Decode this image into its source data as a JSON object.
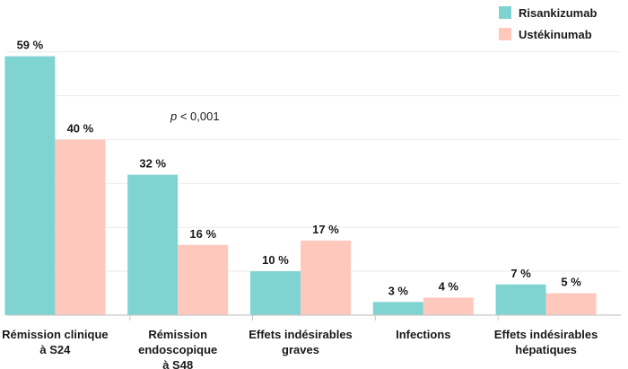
{
  "chart_data": {
    "type": "bar",
    "categories": [
      [
        "Rémission clinique",
        "à S24"
      ],
      [
        "Rémission",
        "endoscopique",
        "à S48"
      ],
      [
        "Effets indésirables",
        "graves"
      ],
      [
        "Infections"
      ],
      [
        "Effets indésirables",
        "hépatiques"
      ]
    ],
    "series": [
      {
        "name": "Risankizumab",
        "color": "#7fd4d1",
        "values": [
          59,
          32,
          10,
          3,
          7
        ],
        "labels": [
          "59 %",
          "32 %",
          "10 %",
          "3 %",
          "7 %"
        ]
      },
      {
        "name": "Ustékinumab",
        "color": "#ffc8bd",
        "values": [
          40,
          16,
          17,
          4,
          5
        ],
        "labels": [
          "40 %",
          "16 %",
          "17 %",
          "4 %",
          "5 %"
        ]
      }
    ],
    "ylim": [
      0,
      62
    ],
    "grid": true,
    "legend": "top-right",
    "annotations": [
      {
        "text_prefix": "p",
        "text": " < 0,001"
      }
    ]
  }
}
